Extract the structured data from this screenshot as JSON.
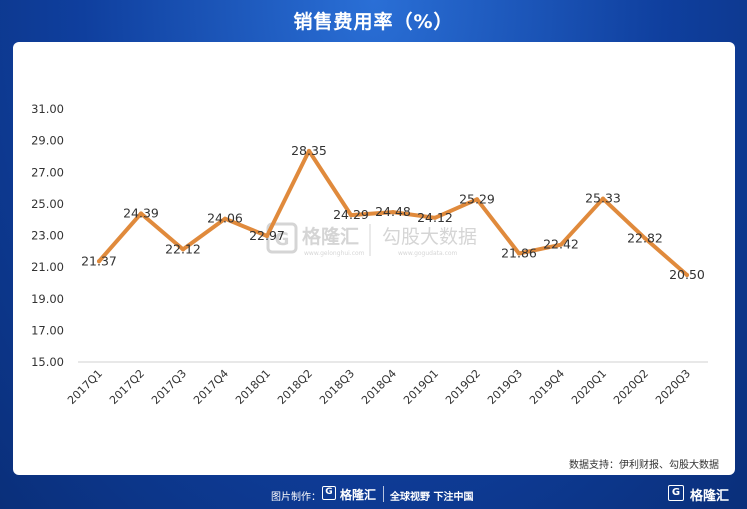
{
  "header": {
    "title": "销售费用率（%）"
  },
  "source": "数据支持：伊利财报、勾股大数据",
  "watermark": {
    "brand": "格隆汇",
    "brand_url": "www.gelonghui.com",
    "partner": "勾股大数据",
    "partner_url": "www.gogudata.com",
    "logo_letter": "G"
  },
  "footer": {
    "credit_label": "图片制作：",
    "logo_letter": "G",
    "logo_text": "格隆汇",
    "slogan": "全球视野 下注中国",
    "right_logo_text": "格隆汇"
  },
  "colors": {
    "line": "#e08a3c",
    "background": "#0f3f9e",
    "grid": "#d0d0d0"
  },
  "chart_data": {
    "type": "line",
    "title": "销售费用率（%）",
    "xlabel": "",
    "ylabel": "",
    "ylim": [
      15.0,
      31.0
    ],
    "yticks": [
      "15.00",
      "17.00",
      "19.00",
      "21.00",
      "23.00",
      "25.00",
      "27.00",
      "29.00",
      "31.00"
    ],
    "grid": false,
    "categories": [
      "2017Q1",
      "2017Q2",
      "2017Q3",
      "2017Q4",
      "2018Q1",
      "2018Q2",
      "2018Q3",
      "2018Q4",
      "2019Q1",
      "2019Q2",
      "2019Q3",
      "2019Q4",
      "2020Q1",
      "2020Q2",
      "2020Q3"
    ],
    "series": [
      {
        "values": [
          21.37,
          24.39,
          22.12,
          24.06,
          22.97,
          28.35,
          24.29,
          24.48,
          24.12,
          25.29,
          21.86,
          22.42,
          25.33,
          22.82,
          20.5
        ],
        "labels": [
          "21.37",
          "24.39",
          "22.12",
          "24.06",
          "22.97",
          "28.35",
          "24.29",
          "24.48",
          "24.12",
          "25.29",
          "21.86",
          "22.42",
          "25.33",
          "22.82",
          "20.50"
        ]
      }
    ]
  }
}
